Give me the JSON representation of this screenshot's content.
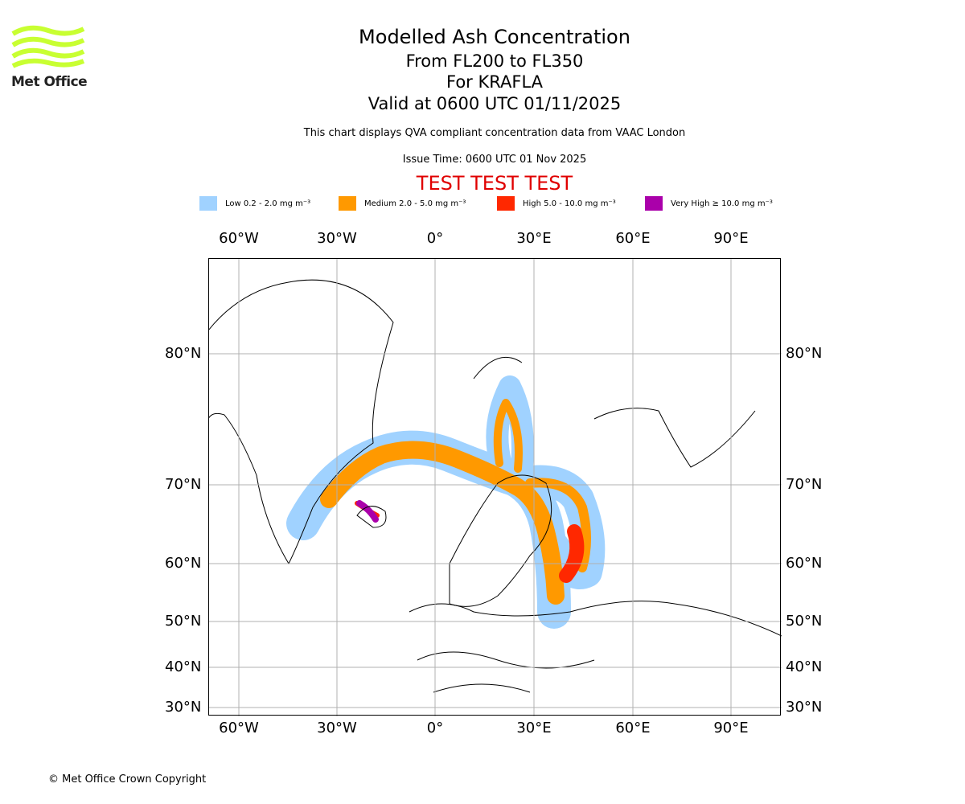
{
  "logo": {
    "text": "Met Office"
  },
  "header": {
    "title": "Modelled Ash Concentration",
    "levels": "From FL200 to FL350",
    "volcano": "For KRAFLA",
    "valid": "Valid at 0600 UTC 01/11/2025",
    "note": "This chart displays QVA compliant concentration data from VAAC London",
    "issue": "Issue Time: 0600 UTC 01 Nov 2025",
    "test": "TEST TEST TEST"
  },
  "legend": [
    {
      "label": "Low 0.2 - 2.0 mg m⁻³",
      "color": "#a0d2ff"
    },
    {
      "label": "Medium 2.0 - 5.0 mg m⁻³",
      "color": "#ff9900"
    },
    {
      "label": "High 5.0 - 10.0 mg m⁻³",
      "color": "#ff2800"
    },
    {
      "label": "Very High ≥ 10.0 mg m⁻³",
      "color": "#aa00aa"
    }
  ],
  "map": {
    "lon_ticks": [
      "60°W",
      "30°W",
      "0°",
      "30°E",
      "60°E",
      "90°E"
    ],
    "lat_ticks": [
      "80°N",
      "70°N",
      "60°N",
      "50°N",
      "40°N",
      "30°N"
    ]
  },
  "footer": {
    "copyright": "© Met Office Crown Copyright"
  }
}
